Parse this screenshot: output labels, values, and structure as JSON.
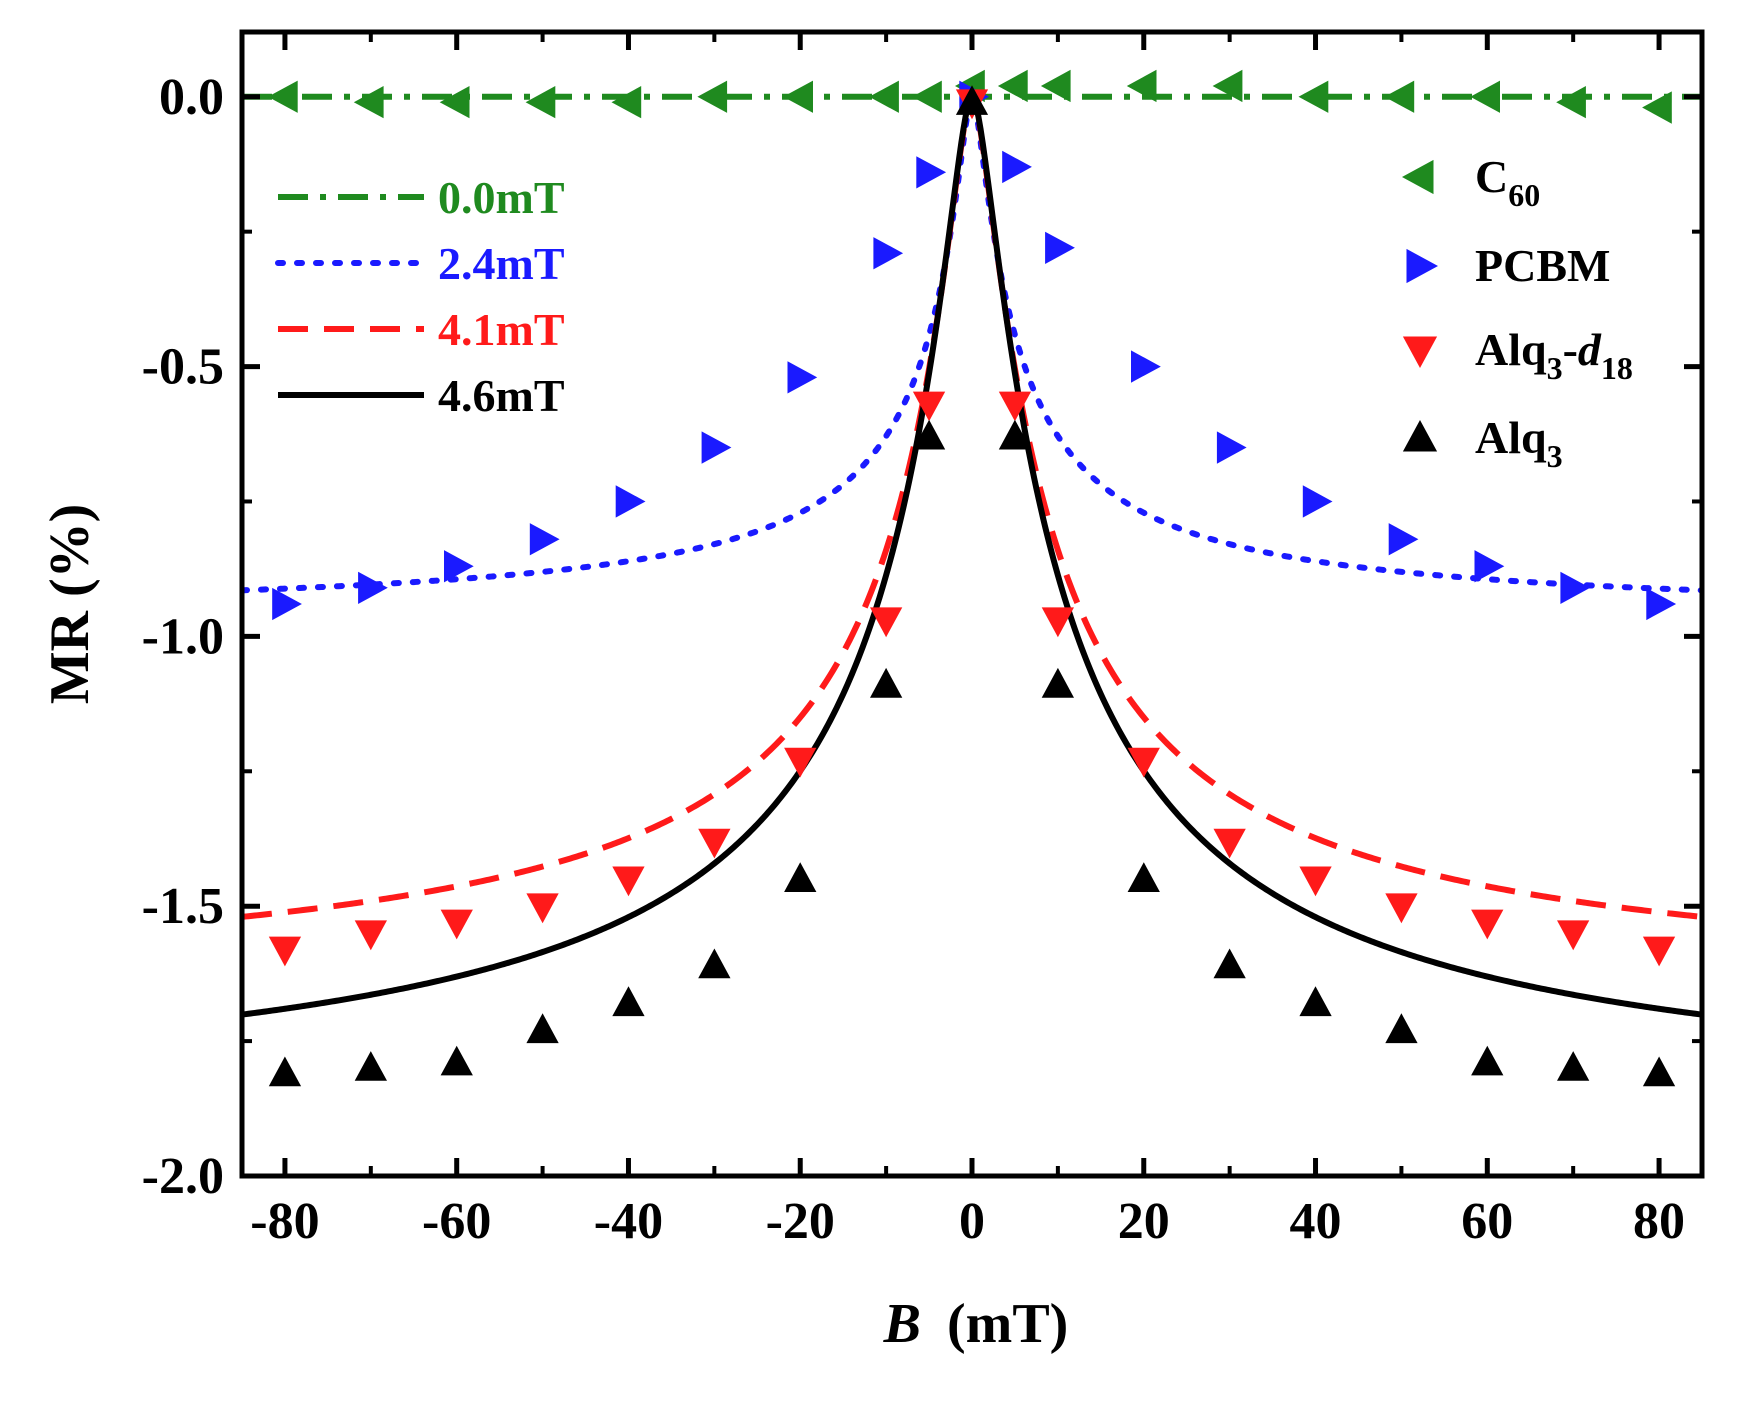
{
  "chart_data": {
    "type": "scatter",
    "title": "",
    "xlabel": "B",
    "xlabel_unit": "(mT)",
    "ylabel": "MR (%)",
    "xlim": [
      -85,
      85
    ],
    "ylim": [
      -2.0,
      0.12
    ],
    "xticks": [
      -80,
      -60,
      -40,
      -20,
      0,
      20,
      40,
      60,
      80
    ],
    "xtick_labels": [
      "-80",
      "-60",
      "-40",
      "-20",
      "0",
      "20",
      "40",
      "60",
      "80"
    ],
    "yticks": [
      0.0,
      -0.5,
      -1.0,
      -1.5,
      -2.0
    ],
    "ytick_labels": [
      "0.0",
      "-0.5",
      "-1.0",
      "-1.5",
      "-2.0"
    ],
    "x": [
      -80,
      -70,
      -60,
      -50,
      -40,
      -30,
      -20,
      -10,
      -5,
      0,
      5,
      10,
      20,
      30,
      40,
      50,
      60,
      70,
      80
    ],
    "series": [
      {
        "name": "C",
        "sub": "60",
        "color": "#1f8a1f",
        "marker": "triangle-left",
        "values": [
          0.0,
          -0.01,
          -0.01,
          -0.01,
          -0.01,
          0.0,
          0.0,
          0.0,
          0.0,
          0.02,
          0.02,
          0.02,
          0.02,
          0.02,
          0.0,
          0.0,
          0.0,
          -0.01,
          -0.02
        ]
      },
      {
        "name": "PCBM",
        "color": "#1a1aff",
        "marker": "triangle-right",
        "values": [
          -0.94,
          -0.91,
          -0.87,
          -0.82,
          -0.75,
          -0.65,
          -0.52,
          -0.29,
          -0.14,
          0.0,
          -0.13,
          -0.28,
          -0.5,
          -0.65,
          -0.75,
          -0.82,
          -0.87,
          -0.91,
          -0.94
        ]
      },
      {
        "name": "Alq",
        "sub": "3",
        "suffix": "-",
        "italic": "d",
        "sub2": "18",
        "color": "#ff1a1a",
        "marker": "triangle-down",
        "values": [
          -1.58,
          -1.55,
          -1.53,
          -1.5,
          -1.45,
          -1.38,
          -1.23,
          -0.97,
          -0.57,
          -0.01,
          -0.57,
          -0.97,
          -1.23,
          -1.38,
          -1.45,
          -1.5,
          -1.53,
          -1.55,
          -1.58
        ]
      },
      {
        "name": "Alq",
        "sub": "3",
        "color": "#000000",
        "marker": "triangle-up",
        "values": [
          -1.81,
          -1.8,
          -1.79,
          -1.73,
          -1.68,
          -1.61,
          -1.45,
          -1.09,
          -0.63,
          -0.01,
          -0.63,
          -1.09,
          -1.45,
          -1.61,
          -1.68,
          -1.73,
          -1.79,
          -1.8,
          -1.81
        ]
      }
    ],
    "fits": [
      {
        "label": "0.0mT",
        "B0": 0.0,
        "amp": 0.0,
        "color": "#1f8a1f",
        "dash": "dashdot"
      },
      {
        "label": "2.4mT",
        "B0": 2.4,
        "amp": -0.967,
        "color": "#1a1aff",
        "dash": "dot"
      },
      {
        "label": "4.1mT",
        "B0": 4.1,
        "amp": -1.67,
        "color": "#ff1a1a",
        "dash": "dash"
      },
      {
        "label": "4.6mT",
        "B0": 4.6,
        "amp": -1.89,
        "color": "#000000",
        "dash": "solid"
      }
    ],
    "grid": false,
    "legend_fits_position": "top-left",
    "legend_markers_position": "top-right"
  }
}
